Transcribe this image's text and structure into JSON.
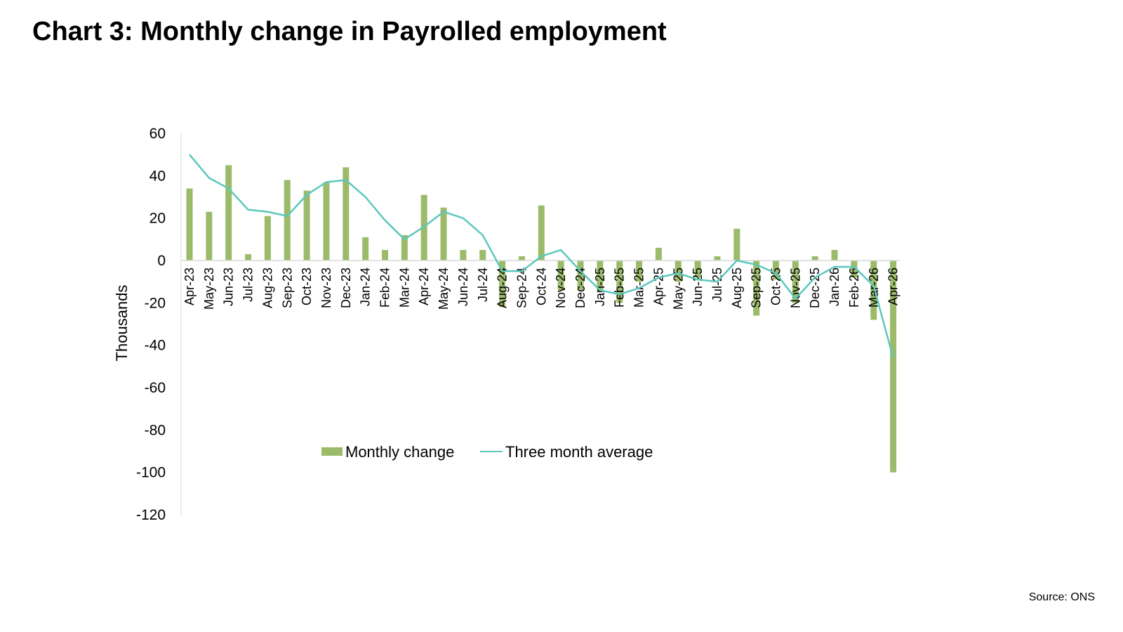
{
  "title": "Chart 3: Monthly change in Payrolled employment",
  "source": "Source: ONS",
  "chart_data": {
    "type": "bar",
    "categories": [
      "Apr-23",
      "May-23",
      "Jun-23",
      "Jul-23",
      "Aug-23",
      "Sep-23",
      "Oct-23",
      "Nov-23",
      "Dec-23",
      "Jan-24",
      "Feb-24",
      "Mar-24",
      "Apr-24",
      "May-24",
      "Jun-24",
      "Jul-24",
      "Aug-24",
      "Sep-24",
      "Oct-24",
      "Nov-24",
      "Dec-24",
      "Jan-25",
      "Feb-25",
      "Mar-25",
      "Apr-25",
      "May-25",
      "Jun-25",
      "Jul-25",
      "Aug-25",
      "Sep-25",
      "Oct-25",
      "Nov-25",
      "Dec-25",
      "Jan-26",
      "Feb-26",
      "Mar-26",
      "Apr-26"
    ],
    "series": [
      {
        "name": "Monthly change",
        "type": "bar",
        "color": "#9bbb6a",
        "values": [
          34,
          23,
          45,
          3,
          21,
          38,
          33,
          37,
          44,
          11,
          5,
          12,
          31,
          25,
          5,
          5,
          -22,
          2,
          26,
          -14,
          -14,
          -15,
          -20,
          -10,
          6,
          -10,
          -8,
          2,
          15,
          -26,
          -9,
          -20,
          2,
          5,
          -8,
          -28,
          -100
        ]
      },
      {
        "name": "Three month average",
        "type": "line",
        "color": "#5cc8bd",
        "values": [
          50,
          39,
          34,
          24,
          23,
          21,
          31,
          37,
          38,
          30,
          19,
          10,
          16,
          23,
          20,
          12,
          -5,
          -5,
          2,
          5,
          -5,
          -14,
          -16,
          -13,
          -8,
          -6,
          -9,
          -10,
          0,
          -2,
          -6,
          -18,
          -8,
          -3,
          -3,
          -12,
          -46
        ]
      }
    ],
    "ylabel": "Thousands",
    "ylim": [
      -120,
      60
    ],
    "yticks": [
      60,
      40,
      20,
      0,
      -20,
      -40,
      -60,
      -80,
      -100,
      -120
    ],
    "legend_position": "bottom-center",
    "grid": false
  }
}
